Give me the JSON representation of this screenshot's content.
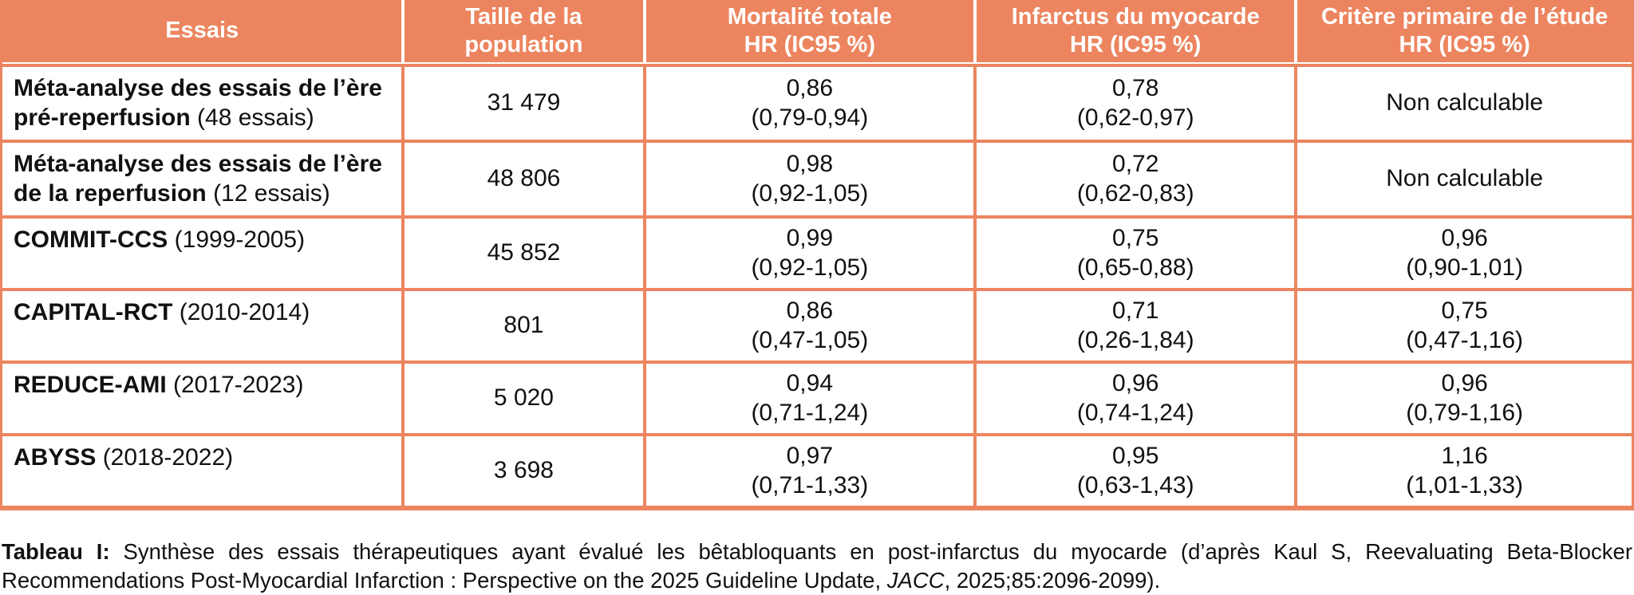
{
  "accent_color": "#EC855F",
  "table": {
    "headers": [
      "Essais",
      "Taille de la\npopulation",
      "Mortalité totale\nHR (IC95 %)",
      "Infarctus du myocarde\nHR (IC95 %)",
      "Critère primaire de l’étude\nHR (IC95 %)"
    ],
    "rows": [
      {
        "name": "Méta-analyse des essais de l’ère pré-reperfusion",
        "detail": " (48 essais)",
        "population": "31 479",
        "mortality_hr": "0,86",
        "mortality_ci": "(0,79-0,94)",
        "mi_hr": "0,78",
        "mi_ci": "(0,62-0,97)",
        "primary_hr": "Non calculable",
        "primary_ci": ""
      },
      {
        "name": "Méta-analyse des essais de l’ère de la reperfusion",
        "detail": " (12 essais)",
        "population": "48 806",
        "mortality_hr": "0,98",
        "mortality_ci": "(0,92-1,05)",
        "mi_hr": "0,72",
        "mi_ci": "(0,62-0,83)",
        "primary_hr": "Non calculable",
        "primary_ci": ""
      },
      {
        "name": "COMMIT-CCS",
        "detail": " (1999-2005)",
        "population": "45 852",
        "mortality_hr": "0,99",
        "mortality_ci": "(0,92-1,05)",
        "mi_hr": "0,75",
        "mi_ci": "(0,65-0,88)",
        "primary_hr": "0,96",
        "primary_ci": "(0,90-1,01)"
      },
      {
        "name": "CAPITAL-RCT",
        "detail": " (2010-2014)",
        "population": "801",
        "mortality_hr": "0,86",
        "mortality_ci": "(0,47-1,05)",
        "mi_hr": "0,71",
        "mi_ci": "(0,26-1,84)",
        "primary_hr": "0,75",
        "primary_ci": "(0,47-1,16)"
      },
      {
        "name": "REDUCE-AMI",
        "detail": " (2017-2023)",
        "population": "5 020",
        "mortality_hr": "0,94",
        "mortality_ci": "(0,71-1,24)",
        "mi_hr": "0,96",
        "mi_ci": "(0,74-1,24)",
        "primary_hr": "0,96",
        "primary_ci": "(0,79-1,16)"
      },
      {
        "name": "ABYSS",
        "detail": " (2018-2022)",
        "population": "3 698",
        "mortality_hr": "0,97",
        "mortality_ci": "(0,71-1,33)",
        "mi_hr": "0,95",
        "mi_ci": "(0,63-1,43)",
        "primary_hr": "1,16",
        "primary_ci": "(1,01-1,33)"
      }
    ]
  },
  "caption": {
    "label": "Tableau I:",
    "text_before": " Synthèse des essais thérapeutiques ayant évalué les bêtabloquants en post-infarctus du myocarde (d’après Kaul S, Reevaluating Beta-Blocker Recommendations Post-Myocardial Infarction : Perspective on the 2025 Guideline Update, ",
    "journal": "JACC",
    "text_after": ", 2025;85:2096-2099)."
  }
}
